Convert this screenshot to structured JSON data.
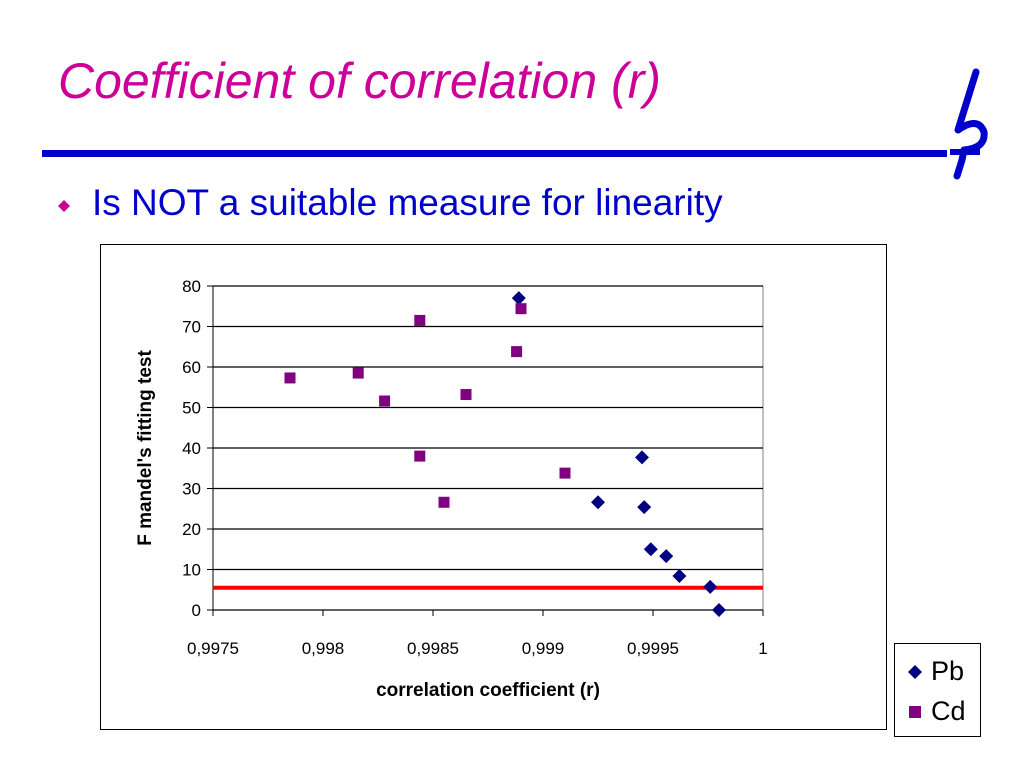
{
  "slide": {
    "title": "Coefficient of correlation (r)",
    "bullet": "Is NOT a suitable measure for linearity",
    "colors": {
      "title": "#cc0099",
      "rule": "#0000cc",
      "bullet_text": "#0000cc",
      "bullet_marker": "#cc0099"
    }
  },
  "chart_data": {
    "type": "scatter",
    "xlabel": "correlation coefficient (r)",
    "ylabel": "F mandel's fitting test",
    "xlim": [
      0.9975,
      1
    ],
    "ylim": [
      0,
      80
    ],
    "x_ticks": [
      "0,9975",
      "0,998",
      "0,9985",
      "0,999",
      "0,9995",
      "1"
    ],
    "y_ticks": [
      "0",
      "10",
      "20",
      "30",
      "40",
      "50",
      "60",
      "70",
      "80"
    ],
    "grid": "horizontal",
    "legend": "right",
    "threshold_line": {
      "y": 5.5,
      "color": "#ff0000"
    },
    "series": [
      {
        "name": "Pb",
        "marker": "diamond",
        "color": "#000080",
        "points": [
          [
            0.99889,
            77.0
          ],
          [
            0.99925,
            26.6
          ],
          [
            0.99945,
            37.7
          ],
          [
            0.99946,
            25.4
          ],
          [
            0.99949,
            15.0
          ],
          [
            0.99956,
            13.3
          ],
          [
            0.99962,
            8.4
          ],
          [
            0.99976,
            5.7
          ],
          [
            0.9998,
            0.0
          ]
        ]
      },
      {
        "name": "Cd",
        "marker": "square",
        "color": "#800080",
        "points": [
          [
            0.99785,
            57.3
          ],
          [
            0.99816,
            58.5
          ],
          [
            0.99828,
            51.6
          ],
          [
            0.99844,
            71.5
          ],
          [
            0.99844,
            38.0
          ],
          [
            0.99855,
            26.6
          ],
          [
            0.99865,
            53.2
          ],
          [
            0.99888,
            63.8
          ],
          [
            0.9989,
            74.4
          ],
          [
            0.9991,
            33.8
          ]
        ]
      }
    ]
  }
}
